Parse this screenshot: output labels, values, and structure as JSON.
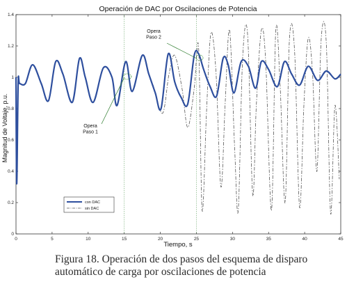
{
  "chart_data": {
    "type": "line",
    "title": "Operación de DAC por Oscilaciones de Potencia",
    "xlabel": "Tiempo, s",
    "ylabel": "Magnitud de Voltaje, p.u.",
    "xlim": [
      0,
      45
    ],
    "ylim": [
      0,
      1.4
    ],
    "xticks": [
      "0",
      "5",
      "10",
      "15",
      "20",
      "25",
      "30",
      "35",
      "40",
      "45"
    ],
    "yticks": [
      "0",
      "0.2",
      "0.4",
      "0.6",
      "0.8",
      "1",
      "1.2",
      "1.4"
    ],
    "grid": false,
    "legend_position": "bottom-left",
    "reference_lines_x": [
      15,
      25
    ],
    "series": [
      {
        "name": "con DAC",
        "style": "solid",
        "color": "#2e4f9e",
        "x": [
          0,
          0.1,
          0.3,
          0.5,
          1.3,
          2.3,
          3.5,
          4.5,
          5.5,
          6.5,
          7.8,
          8.8,
          9.6,
          10.7,
          12.1,
          13.3,
          14.0,
          15.2,
          16.1,
          17.5,
          18.4,
          19.3,
          20.1,
          21.1,
          22.0,
          22.9,
          23.8,
          24.7,
          25.3,
          26.0,
          26.9,
          27.8,
          28.7,
          29.4,
          30.2,
          31.2,
          32.2,
          33.2,
          34.0,
          35.0,
          36.2,
          37.2,
          38.2,
          39.3,
          40.5,
          41.8,
          43.0,
          44.2,
          45.0
        ],
        "values": [
          1.0,
          0.32,
          0.96,
          0.96,
          0.96,
          1.08,
          0.96,
          0.85,
          1.1,
          1.02,
          0.84,
          1.12,
          1.0,
          0.84,
          1.06,
          1.0,
          0.82,
          1.1,
          0.91,
          1.14,
          1.02,
          0.9,
          0.8,
          1.15,
          0.97,
          0.87,
          0.83,
          1.14,
          1.15,
          1.05,
          0.94,
          0.88,
          1.12,
          1.08,
          0.9,
          1.1,
          1.07,
          0.93,
          1.1,
          1.05,
          0.94,
          1.1,
          1.02,
          0.95,
          1.07,
          0.98,
          1.04,
          0.99,
          1.02
        ]
      },
      {
        "name": "sin DAC",
        "style": "dashdot",
        "color": "#555555",
        "x": [
          19.0,
          20.3,
          21.2,
          22.0,
          23.0,
          23.8,
          24.7,
          25.3,
          25.8,
          26.4,
          27.0,
          27.7,
          28.4,
          29.0,
          29.6,
          30.3,
          30.8,
          31.4,
          32.1,
          32.8,
          33.3,
          34.0,
          34.6,
          35.4,
          36.0,
          36.6,
          37.3,
          37.9,
          38.6,
          39.3,
          39.9,
          40.5,
          41.1,
          41.7,
          42.3,
          43.0,
          43.6,
          44.2,
          44.8
        ],
        "values": [
          0.95,
          0.77,
          1.02,
          1.14,
          0.93,
          0.68,
          0.93,
          1.19,
          0.15,
          0.78,
          1.28,
          1.04,
          0.3,
          0.85,
          1.3,
          0.55,
          0.15,
          1.12,
          1.27,
          0.25,
          0.82,
          1.3,
          1.1,
          0.15,
          1.3,
          0.95,
          0.2,
          1.25,
          1.17,
          0.17,
          0.83,
          1.25,
          1.02,
          0.4,
          1.25,
          1.22,
          0.13,
          0.82,
          0.35
        ]
      }
    ],
    "annotations": [
      {
        "text": [
          "Opera",
          "Paso 1"
        ],
        "x": 15.2,
        "y": 1.02
      },
      {
        "text": [
          "Opera",
          "Paso 2"
        ],
        "x": 25.3,
        "y": 1.15
      }
    ]
  },
  "caption": {
    "line1": "Figura 18.  Operación de dos pasos del esquema de disparo",
    "line2": "automático de carga por oscilaciones de potencia"
  }
}
